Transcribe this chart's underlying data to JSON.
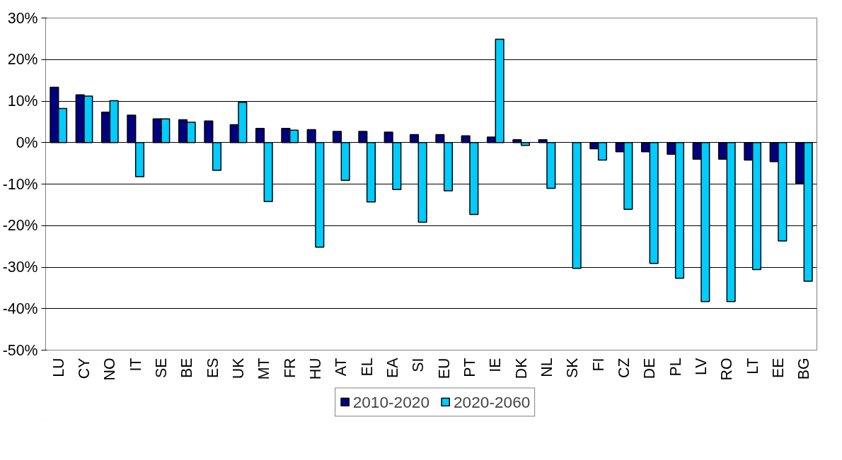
{
  "chart_data": {
    "type": "bar",
    "categories": [
      "LU",
      "CY",
      "NO",
      "IT",
      "SE",
      "BE",
      "ES",
      "UK",
      "MT",
      "FR",
      "HU",
      "AT",
      "EL",
      "EA",
      "SI",
      "EU",
      "PT",
      "IE",
      "DK",
      "NL",
      "SK",
      "FI",
      "CZ",
      "DE",
      "PL",
      "LV",
      "RO",
      "LT",
      "EE",
      "BG"
    ],
    "series": [
      {
        "name": "2010-2020",
        "color": "#000080",
        "values": [
          13.3,
          11.5,
          7.3,
          6.6,
          5.7,
          5.5,
          5.2,
          4.3,
          3.4,
          3.4,
          3.1,
          2.7,
          2.7,
          2.5,
          1.9,
          1.9,
          1.6,
          1.3,
          0.7,
          0.7,
          null,
          -1.5,
          -2.2,
          -2.2,
          -2.8,
          -4.0,
          -4.0,
          -4.2,
          -4.6,
          -9.8
        ]
      },
      {
        "name": "2020-2060",
        "color": "#00ccff",
        "values": [
          8.2,
          11.2,
          10.1,
          -8.2,
          5.7,
          4.9,
          -6.7,
          9.7,
          -14.2,
          3.0,
          -25.2,
          -9.1,
          -14.3,
          -11.3,
          -19.2,
          -11.6,
          -17.3,
          24.9,
          -0.7,
          -11.0,
          -30.3,
          -4.2,
          -16.1,
          -29.1,
          -32.7,
          -38.3,
          -38.3,
          -30.6,
          -23.7,
          -33.4
        ]
      }
    ],
    "ylim": [
      -50,
      30
    ],
    "yticks": [
      {
        "value": -50,
        "label": "-50%"
      },
      {
        "value": -40,
        "label": "-40%"
      },
      {
        "value": -30,
        "label": "-30%"
      },
      {
        "value": -20,
        "label": "-20%"
      },
      {
        "value": -10,
        "label": "-10%"
      },
      {
        "value": 0,
        "label": "0%"
      },
      {
        "value": 10,
        "label": "10%"
      },
      {
        "value": 20,
        "label": "20%"
      },
      {
        "value": 30,
        "label": "30%"
      }
    ],
    "grid": "y",
    "legend": "bottom"
  }
}
